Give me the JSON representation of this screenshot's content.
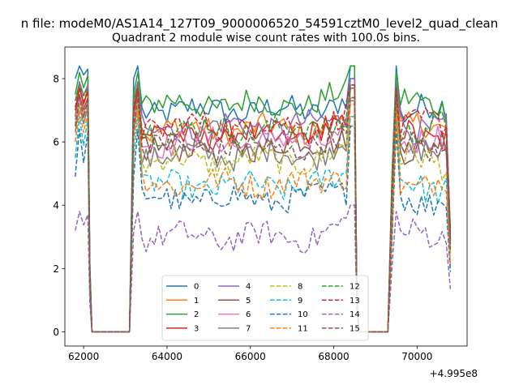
{
  "chart_data": {
    "type": "line",
    "suptitle": "n file: modeM0/AS1A14_127T09_9000006520_54591cztM0_level2_quad_clean",
    "title": "Quadrant 2 module wise count rates with 100.0s bins.",
    "xlabel": "",
    "ylabel": "",
    "x_offset_label": "+4.995e8",
    "xlim": [
      61550,
      71200
    ],
    "ylim": [
      -0.45,
      9.0
    ],
    "xticks": [
      62000,
      64000,
      66000,
      68000,
      70000
    ],
    "xtick_labels": [
      "62000",
      "64000",
      "66000",
      "68000",
      "70000"
    ],
    "yticks": [
      0,
      2,
      4,
      6,
      8
    ],
    "ytick_labels": [
      "0",
      "2",
      "4",
      "6",
      "8"
    ],
    "legend_loc": "lower center",
    "legend_ncol": 4,
    "segments": [
      [
        61800,
        62100
      ],
      [
        63200,
        68500
      ],
      [
        69400,
        70800
      ]
    ],
    "gaps": [
      [
        62200,
        63100
      ],
      [
        68600,
        69300
      ]
    ],
    "bin_width": 100,
    "series": [
      {
        "name": "0",
        "color": "#1f77b4",
        "style": "solid",
        "level": 7.0,
        "start": 8.0,
        "peak": 8.4
      },
      {
        "name": "1",
        "color": "#ff7f0e",
        "style": "solid",
        "level": 6.4,
        "start": 6.8,
        "peak": 7.9
      },
      {
        "name": "2",
        "color": "#2ca02c",
        "style": "solid",
        "level": 7.2,
        "start": 7.5,
        "peak": 8.2
      },
      {
        "name": "3",
        "color": "#d62728",
        "style": "solid",
        "level": 6.2,
        "start": 7.0,
        "peak": 7.7
      },
      {
        "name": "4",
        "color": "#9467bd",
        "style": "solid",
        "level": 6.5,
        "start": 7.3,
        "peak": 7.9
      },
      {
        "name": "5",
        "color": "#8c564b",
        "style": "solid",
        "level": 5.9,
        "start": 6.8,
        "peak": 7.5
      },
      {
        "name": "6",
        "color": "#e377c2",
        "style": "solid",
        "level": 6.0,
        "start": 6.7,
        "peak": 7.4
      },
      {
        "name": "7",
        "color": "#7f7f7f",
        "style": "solid",
        "level": 5.6,
        "start": 6.3,
        "peak": 7.2
      },
      {
        "name": "8",
        "color": "#bcbd22",
        "style": "dashed",
        "level": 5.4,
        "start": 6.6,
        "peak": 7.2
      },
      {
        "name": "9",
        "color": "#17becf",
        "style": "dashed",
        "level": 4.6,
        "start": 5.5,
        "peak": 6.8
      },
      {
        "name": "10",
        "color": "#1f77b4",
        "style": "dashed",
        "level": 4.2,
        "start": 4.9,
        "peak": 6.4
      },
      {
        "name": "11",
        "color": "#ff7f0e",
        "style": "dashed",
        "level": 4.7,
        "start": 6.0,
        "peak": 7.0
      },
      {
        "name": "12",
        "color": "#2ca02c",
        "style": "dashed",
        "level": 6.4,
        "start": 7.3,
        "peak": 7.8
      },
      {
        "name": "13",
        "color": "#d62728",
        "style": "dashed",
        "level": 6.5,
        "start": 7.1,
        "peak": 7.7
      },
      {
        "name": "14",
        "color": "#9467bd",
        "style": "dashed",
        "level": 3.0,
        "start": 3.2,
        "peak": 3.8
      },
      {
        "name": "15",
        "color": "#8c564b",
        "style": "dashed",
        "level": 5.8,
        "start": 6.5,
        "peak": 7.4
      }
    ]
  }
}
